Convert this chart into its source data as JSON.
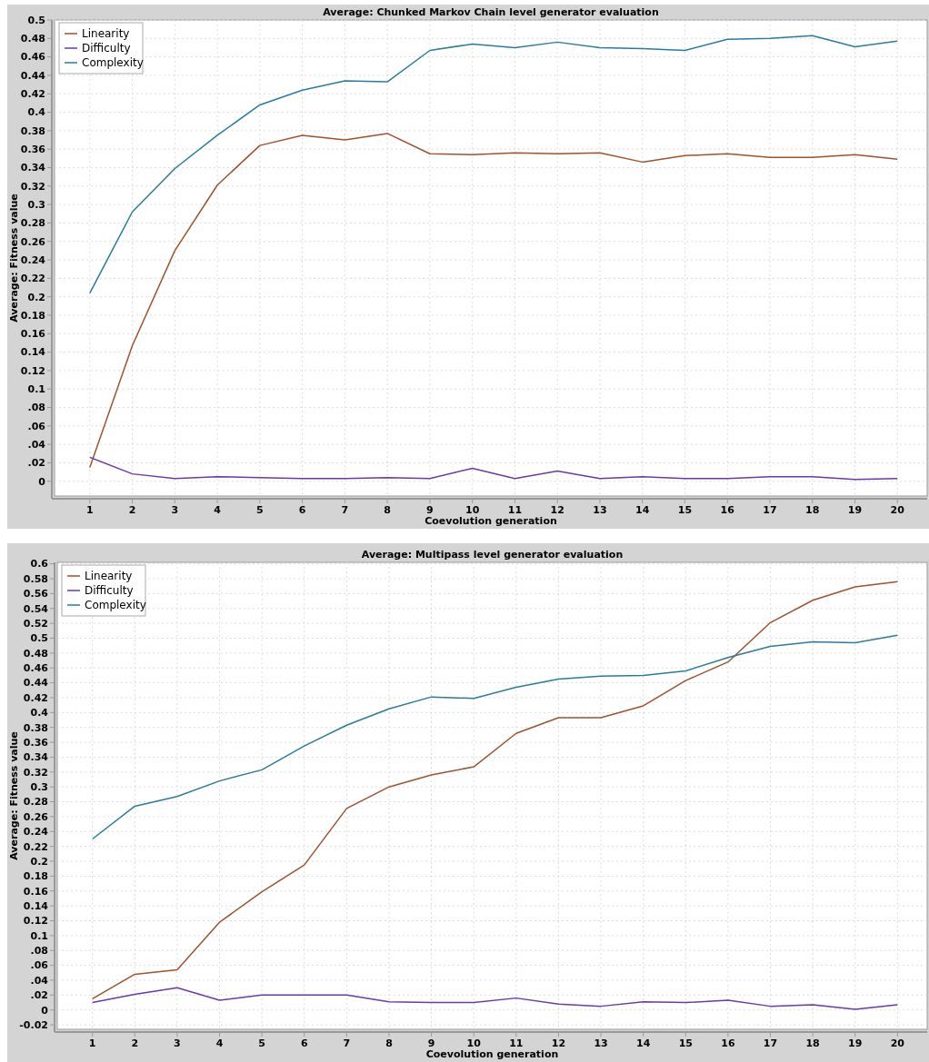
{
  "chart_data": [
    {
      "type": "line",
      "title": "Average: Chunked Markov Chain level generator evaluation",
      "xlabel": "Coevolution generation",
      "ylabel": "Average: Fitness value",
      "x": [
        1,
        2,
        3,
        4,
        5,
        6,
        7,
        8,
        9,
        10,
        11,
        12,
        13,
        14,
        15,
        16,
        17,
        18,
        19,
        20
      ],
      "xlim": [
        0.17,
        20.7
      ],
      "xticks": [
        1,
        2,
        3,
        4,
        5,
        6,
        7,
        8,
        9,
        10,
        11,
        12,
        13,
        14,
        15,
        16,
        17,
        18,
        19,
        20
      ],
      "ylim": [
        -0.016,
        0.5
      ],
      "yticks": [
        0,
        {
          "value": 0.02,
          "label": ".02"
        },
        {
          "value": 0.04,
          "label": ".04"
        },
        {
          "value": 0.06,
          "label": ".06"
        },
        {
          "value": 0.08,
          "label": ".08"
        },
        0.1,
        0.12,
        0.14,
        0.16,
        0.18,
        0.2,
        0.22,
        0.24,
        0.26,
        0.28,
        0.3,
        0.32,
        0.34,
        0.36,
        0.38,
        0.4,
        0.42,
        0.44,
        0.46,
        0.48,
        0.5
      ],
      "grid": true,
      "legend": "top left",
      "line_style": "solid",
      "series": [
        {
          "name": "Linearity",
          "color": "#a0522d",
          "values": [
            0.015,
            0.147,
            0.25,
            0.321,
            0.364,
            0.375,
            0.37,
            0.377,
            0.355,
            0.354,
            0.356,
            0.355,
            0.356,
            0.346,
            0.353,
            0.355,
            0.351,
            0.351,
            0.354,
            0.349
          ]
        },
        {
          "name": "Difficulty",
          "color": "#6a3aaa",
          "values": [
            0.026,
            0.008,
            0.003,
            0.005,
            0.004,
            0.003,
            0.003,
            0.004,
            0.003,
            0.014,
            0.003,
            0.011,
            0.003,
            0.005,
            0.003,
            0.003,
            0.005,
            0.005,
            0.002,
            0.003
          ]
        },
        {
          "name": "Complexity",
          "color": "#2a7c9c",
          "values": [
            0.204,
            0.292,
            0.339,
            0.375,
            0.408,
            0.424,
            0.434,
            0.433,
            0.467,
            0.474,
            0.47,
            0.476,
            0.47,
            0.469,
            0.467,
            0.479,
            0.48,
            0.483,
            0.471,
            0.477
          ]
        }
      ]
    },
    {
      "type": "line",
      "title": "Average: Multipass level generator evaluation",
      "xlabel": "Coevolution generation",
      "ylabel": "Average: Fitness value",
      "x": [
        1,
        2,
        3,
        4,
        5,
        6,
        7,
        8,
        9,
        10,
        11,
        12,
        13,
        14,
        15,
        16,
        17,
        18,
        19,
        20
      ],
      "xlim": [
        0.17,
        20.7
      ],
      "xticks": [
        1,
        2,
        3,
        4,
        5,
        6,
        7,
        8,
        9,
        10,
        11,
        12,
        13,
        14,
        15,
        16,
        17,
        18,
        19,
        20
      ],
      "ylim": [
        -0.026,
        0.602
      ],
      "yticks": [
        -0.02,
        0,
        {
          "value": 0.02,
          "label": ".02"
        },
        {
          "value": 0.04,
          "label": ".04"
        },
        {
          "value": 0.06,
          "label": ".06"
        },
        {
          "value": 0.08,
          "label": ".08"
        },
        0.1,
        0.12,
        0.14,
        0.16,
        0.18,
        0.2,
        0.22,
        0.24,
        0.26,
        0.28,
        0.3,
        0.32,
        0.34,
        0.36,
        0.38,
        0.4,
        0.42,
        0.44,
        0.46,
        0.48,
        0.5,
        0.52,
        0.54,
        0.56,
        0.58,
        0.6
      ],
      "grid": true,
      "legend": "top left",
      "line_style": "solid",
      "series": [
        {
          "name": "Linearity",
          "color": "#a0522d",
          "values": [
            0.015,
            0.048,
            0.054,
            0.118,
            0.159,
            0.195,
            0.271,
            0.3,
            0.316,
            0.327,
            0.372,
            0.393,
            0.393,
            0.409,
            0.443,
            0.468,
            0.521,
            0.551,
            0.569,
            0.576
          ]
        },
        {
          "name": "Difficulty",
          "color": "#6a3aaa",
          "values": [
            0.01,
            0.021,
            0.03,
            0.013,
            0.02,
            0.02,
            0.02,
            0.011,
            0.01,
            0.01,
            0.016,
            0.008,
            0.005,
            0.011,
            0.01,
            0.013,
            0.005,
            0.007,
            0.001,
            0.007
          ]
        },
        {
          "name": "Complexity",
          "color": "#2a7c9c",
          "values": [
            0.23,
            0.274,
            0.287,
            0.308,
            0.323,
            0.355,
            0.383,
            0.405,
            0.421,
            0.419,
            0.434,
            0.445,
            0.449,
            0.45,
            0.456,
            0.474,
            0.489,
            0.495,
            0.494,
            0.504
          ]
        }
      ]
    }
  ]
}
